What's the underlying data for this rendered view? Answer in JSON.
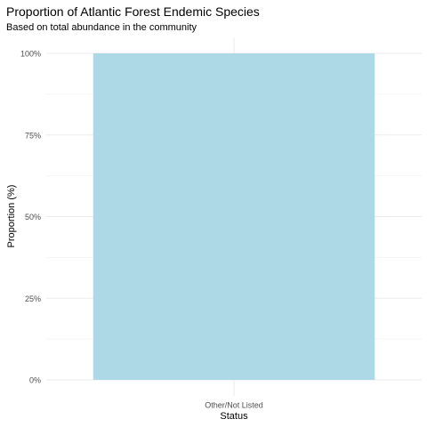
{
  "chart_data": {
    "type": "bar",
    "title": "Proportion of Atlantic Forest Endemic Species",
    "subtitle": "Based on total abundance in the community",
    "xlabel": "Status",
    "ylabel": "Proportion (%)",
    "categories": [
      "Other/Not Listed"
    ],
    "values": [
      100
    ],
    "ylim": [
      0,
      100
    ],
    "y_ticks": [
      0,
      25,
      50,
      75,
      100
    ],
    "y_tick_labels": [
      "0%",
      "25%",
      "50%",
      "75%",
      "100%"
    ],
    "grid": true,
    "legend": "none",
    "bar_color": "#ADD8E6",
    "grid_color": "#EBEBEB"
  }
}
